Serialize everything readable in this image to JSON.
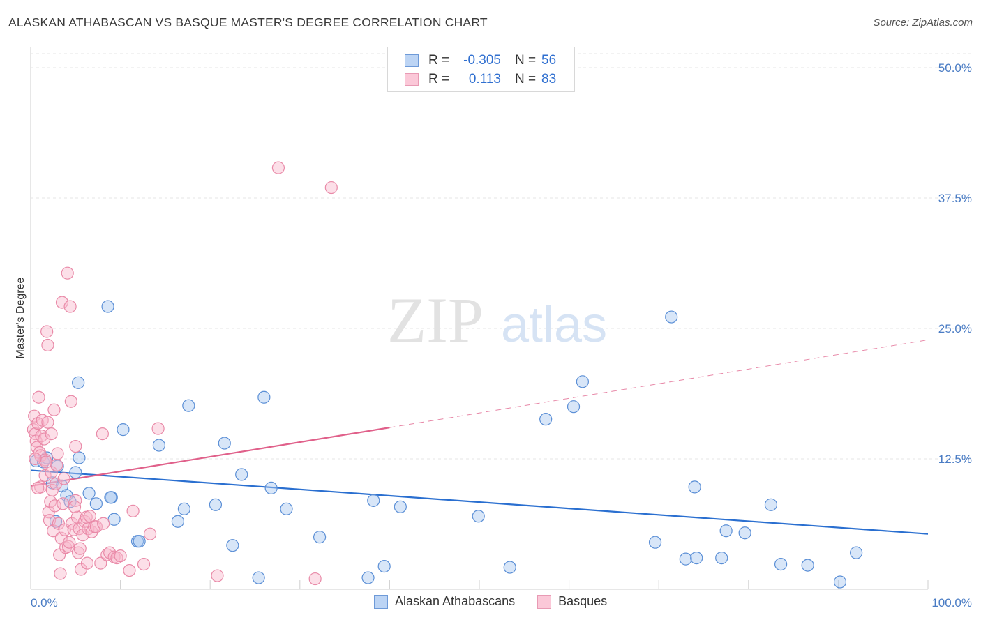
{
  "title": "ALASKAN ATHABASCAN VS BASQUE MASTER'S DEGREE CORRELATION CHART",
  "source": "Source: ZipAtlas.com",
  "watermark": {
    "zip": "ZIP",
    "atlas": "atlas"
  },
  "legend": {
    "rows": [
      {
        "r_label": "R =",
        "r_value": "-0.305",
        "n_label": "N =",
        "n_value": "56"
      },
      {
        "r_label": "R =",
        "r_value": "0.113",
        "n_label": "N =",
        "n_value": "83"
      }
    ]
  },
  "bottom_legend": {
    "items": [
      {
        "label": "Alaskan Athabascans"
      },
      {
        "label": "Basques"
      }
    ]
  },
  "colors": {
    "blue_fill": "#a8c8f0",
    "blue_stroke": "#5b8fd6",
    "blue_line": "#2a6fd0",
    "pink_fill": "#f8b8cc",
    "pink_stroke": "#e98aa8",
    "pink_line": "#e0608a",
    "tick": "#4a7cc4"
  },
  "chart_data": {
    "type": "scatter",
    "title": "ALASKAN ATHABASCAN VS BASQUE MASTER'S DEGREE CORRELATION CHART",
    "xlabel": "",
    "ylabel": "Master's Degree",
    "xlim": [
      0,
      100
    ],
    "ylim": [
      0,
      52
    ],
    "y_ticks": [
      {
        "value": 12.5,
        "label": "12.5%"
      },
      {
        "value": 25.0,
        "label": "25.0%"
      },
      {
        "value": 37.5,
        "label": "37.5%"
      },
      {
        "value": 50.0,
        "label": "50.0%"
      }
    ],
    "x_tick_labels": [
      {
        "value": 0,
        "label": "0.0%"
      },
      {
        "value": 100,
        "label": "100.0%"
      }
    ],
    "series": [
      {
        "name": "Alaskan Athabascans",
        "r": -0.305,
        "n": 56,
        "trend": {
          "x": [
            0,
            100
          ],
          "y": [
            11.4,
            5.3
          ],
          "dashed_from": null
        },
        "points": [
          [
            0.6,
            12.3
          ],
          [
            1.4,
            12.2
          ],
          [
            1.8,
            12.6
          ],
          [
            2.4,
            10.2
          ],
          [
            3.0,
            11.8
          ],
          [
            3.5,
            9.9
          ],
          [
            2.8,
            6.5
          ],
          [
            4.0,
            9.0
          ],
          [
            4.4,
            8.4
          ],
          [
            5.0,
            11.2
          ],
          [
            5.4,
            12.6
          ],
          [
            6.5,
            9.2
          ],
          [
            7.3,
            8.2
          ],
          [
            8.6,
            27.1
          ],
          [
            9.0,
            8.8
          ],
          [
            9.3,
            6.7
          ],
          [
            10.3,
            15.3
          ],
          [
            11.9,
            4.6
          ],
          [
            12.1,
            4.6
          ],
          [
            14.3,
            13.8
          ],
          [
            5.3,
            19.8
          ],
          [
            16.4,
            6.5
          ],
          [
            17.1,
            7.7
          ],
          [
            17.6,
            17.6
          ],
          [
            20.6,
            8.1
          ],
          [
            21.6,
            14.0
          ],
          [
            22.5,
            4.2
          ],
          [
            23.5,
            11.0
          ],
          [
            25.4,
            1.1
          ],
          [
            26.0,
            18.4
          ],
          [
            26.8,
            9.7
          ],
          [
            28.5,
            7.7
          ],
          [
            32.2,
            5.0
          ],
          [
            37.6,
            1.1
          ],
          [
            38.2,
            8.5
          ],
          [
            39.4,
            2.2
          ],
          [
            41.2,
            7.9
          ],
          [
            49.9,
            7.0
          ],
          [
            53.4,
            2.1
          ],
          [
            57.4,
            16.3
          ],
          [
            60.5,
            17.5
          ],
          [
            61.5,
            19.9
          ],
          [
            69.6,
            4.5
          ],
          [
            71.4,
            26.1
          ],
          [
            73.0,
            2.9
          ],
          [
            74.2,
            3.0
          ],
          [
            74.0,
            9.8
          ],
          [
            77.0,
            3.0
          ],
          [
            77.5,
            5.6
          ],
          [
            79.6,
            5.4
          ],
          [
            82.5,
            8.1
          ],
          [
            83.6,
            2.4
          ],
          [
            86.6,
            2.3
          ],
          [
            90.2,
            0.7
          ],
          [
            92.0,
            3.5
          ],
          [
            8.9,
            8.8
          ]
        ]
      },
      {
        "name": "Basques",
        "r": 0.113,
        "n": 83,
        "trend": {
          "x": [
            0,
            100
          ],
          "y": [
            9.9,
            23.9
          ],
          "dashed_from": 40
        },
        "points": [
          [
            0.3,
            15.3
          ],
          [
            0.4,
            16.6
          ],
          [
            0.5,
            14.9
          ],
          [
            0.6,
            14.2
          ],
          [
            0.7,
            13.6
          ],
          [
            0.8,
            15.9
          ],
          [
            0.9,
            18.4
          ],
          [
            1.0,
            13.1
          ],
          [
            1.1,
            12.8
          ],
          [
            1.1,
            9.8
          ],
          [
            1.2,
            14.7
          ],
          [
            1.3,
            16.2
          ],
          [
            1.5,
            14.4
          ],
          [
            1.6,
            10.9
          ],
          [
            1.6,
            12.4
          ],
          [
            1.7,
            12.2
          ],
          [
            1.8,
            24.7
          ],
          [
            1.9,
            23.4
          ],
          [
            2.0,
            7.4
          ],
          [
            2.1,
            6.6
          ],
          [
            2.2,
            8.4
          ],
          [
            2.3,
            11.2
          ],
          [
            2.4,
            9.5
          ],
          [
            2.5,
            5.6
          ],
          [
            2.6,
            17.2
          ],
          [
            2.7,
            8.0
          ],
          [
            2.8,
            10.1
          ],
          [
            2.9,
            11.9
          ],
          [
            3.0,
            13.0
          ],
          [
            3.1,
            6.3
          ],
          [
            3.2,
            3.3
          ],
          [
            3.3,
            1.5
          ],
          [
            3.4,
            4.9
          ],
          [
            3.5,
            27.5
          ],
          [
            3.6,
            8.2
          ],
          [
            3.8,
            5.7
          ],
          [
            3.9,
            4.0
          ],
          [
            4.1,
            30.3
          ],
          [
            4.2,
            4.1
          ],
          [
            4.3,
            4.5
          ],
          [
            4.4,
            27.1
          ],
          [
            4.5,
            18.0
          ],
          [
            4.6,
            6.3
          ],
          [
            4.8,
            5.7
          ],
          [
            5.0,
            8.5
          ],
          [
            5.2,
            6.9
          ],
          [
            5.0,
            13.7
          ],
          [
            5.3,
            3.5
          ],
          [
            5.5,
            3.9
          ],
          [
            5.4,
            5.8
          ],
          [
            5.6,
            1.9
          ],
          [
            5.8,
            5.2
          ],
          [
            6.0,
            6.5
          ],
          [
            6.2,
            6.9
          ],
          [
            6.3,
            2.5
          ],
          [
            6.4,
            5.8
          ],
          [
            6.6,
            7.0
          ],
          [
            6.8,
            5.5
          ],
          [
            7.1,
            6.0
          ],
          [
            7.3,
            6.0
          ],
          [
            7.8,
            2.5
          ],
          [
            8.0,
            14.9
          ],
          [
            8.1,
            6.3
          ],
          [
            8.5,
            3.3
          ],
          [
            8.8,
            3.5
          ],
          [
            9.3,
            3.1
          ],
          [
            9.6,
            3.0
          ],
          [
            10.0,
            3.2
          ],
          [
            11.0,
            1.8
          ],
          [
            11.4,
            7.5
          ],
          [
            12.6,
            2.4
          ],
          [
            13.3,
            5.3
          ],
          [
            14.2,
            15.4
          ],
          [
            20.8,
            1.3
          ],
          [
            27.6,
            40.4
          ],
          [
            31.7,
            1.0
          ],
          [
            33.5,
            38.5
          ],
          [
            0.8,
            9.7
          ],
          [
            0.5,
            12.5
          ],
          [
            1.9,
            16.0
          ],
          [
            3.7,
            10.6
          ],
          [
            2.3,
            14.9
          ],
          [
            4.9,
            7.9
          ]
        ]
      }
    ]
  }
}
